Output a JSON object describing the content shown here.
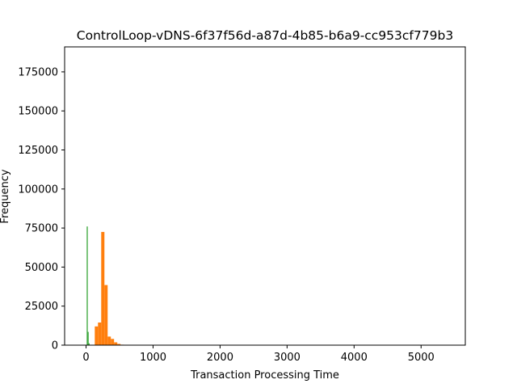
{
  "chart_data": {
    "type": "bar",
    "title": "ControlLoop-vDNS-6f37f56d-a87d-4b85-b6a9-cc953cf779b3",
    "xlabel": "Transaction Processing Time",
    "ylabel": "Frequency",
    "xlim": [
      -320,
      5660
    ],
    "ylim": [
      0,
      191000
    ],
    "xticks": [
      0,
      1000,
      2000,
      3000,
      4000,
      5000
    ],
    "yticks": [
      0,
      25000,
      50000,
      75000,
      100000,
      125000,
      150000,
      175000
    ],
    "grid": false,
    "legend": "none",
    "series": [
      {
        "color": "#2ca02c",
        "bins": [
          {
            "x0": 10,
            "x1": 25,
            "count": 76000
          },
          {
            "x0": 25,
            "x1": 38,
            "count": 8500
          },
          {
            "x0": 38,
            "x1": 52,
            "count": 1200
          }
        ]
      },
      {
        "color": "#ff7f0e",
        "bins": [
          {
            "x0": 130,
            "x1": 178,
            "count": 12000
          },
          {
            "x0": 178,
            "x1": 226,
            "count": 14500
          },
          {
            "x0": 226,
            "x1": 274,
            "count": 72500
          },
          {
            "x0": 274,
            "x1": 322,
            "count": 38500
          },
          {
            "x0": 322,
            "x1": 370,
            "count": 5500
          },
          {
            "x0": 370,
            "x1": 418,
            "count": 4000
          },
          {
            "x0": 418,
            "x1": 466,
            "count": 1800
          },
          {
            "x0": 466,
            "x1": 514,
            "count": 800
          },
          {
            "x0": 514,
            "x1": 562,
            "count": 300
          }
        ]
      }
    ]
  }
}
